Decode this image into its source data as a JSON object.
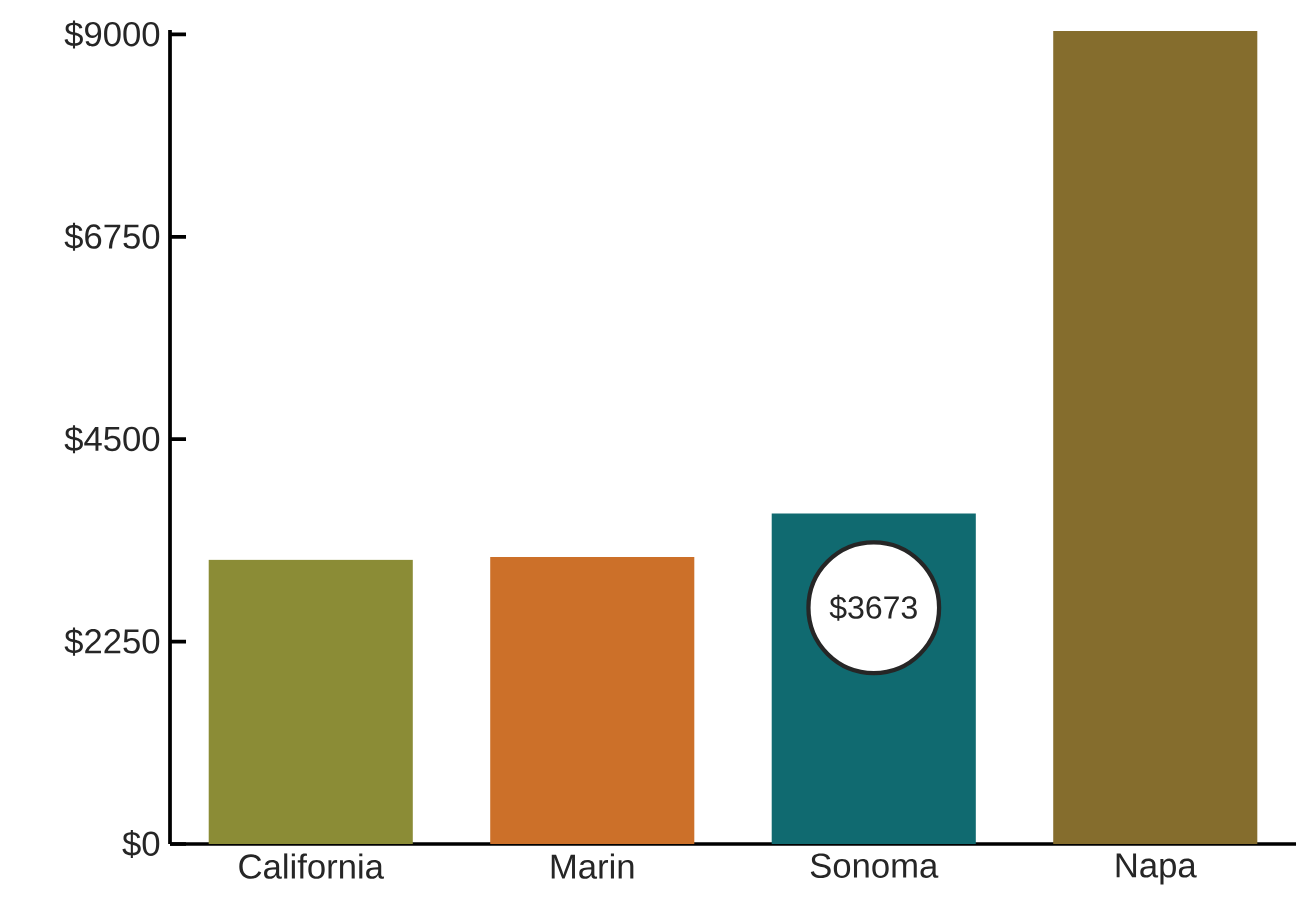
{
  "chart_data": {
    "type": "bar",
    "categories": [
      "California",
      "Marin",
      "Sonoma",
      "Napa"
    ],
    "values": [
      3160,
      3190,
      3673,
      9040
    ],
    "colors": [
      "#8b8c36",
      "#cc7029",
      "#106a70",
      "#856d2d"
    ],
    "value_labels": [
      null,
      null,
      "$3673",
      null
    ],
    "ylim": [
      0,
      9050
    ],
    "yticks": [
      {
        "value": 0,
        "label": "$0"
      },
      {
        "value": 2250,
        "label": "$2250"
      },
      {
        "value": 4500,
        "label": "$4500"
      },
      {
        "value": 6750,
        "label": "$6750"
      },
      {
        "value": 9000,
        "label": "$9000"
      }
    ]
  }
}
